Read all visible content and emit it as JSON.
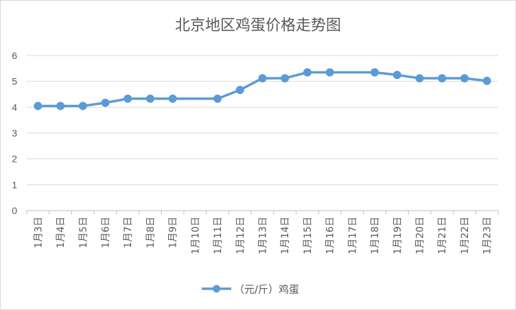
{
  "chart_data": {
    "type": "line",
    "title": "北京地区鸡蛋价格走势图",
    "categories": [
      "1月3日",
      "1月4日",
      "1月5日",
      "1月6日",
      "1月7日",
      "1月8日",
      "1月9日",
      "1月10日",
      "1月11日",
      "1月12日",
      "1月13日",
      "1月14日",
      "1月15日",
      "1月16日",
      "1月17日",
      "1月18日",
      "1月19日",
      "1月20日",
      "1月21日",
      "1月22日",
      "1月23日"
    ],
    "series": [
      {
        "name": "（元/斤）鸡蛋",
        "color": "#5b9bd5",
        "values": [
          4.05,
          4.05,
          4.05,
          4.17,
          4.33,
          4.33,
          4.33,
          null,
          4.33,
          4.67,
          5.12,
          5.12,
          5.35,
          5.35,
          null,
          5.35,
          5.25,
          5.12,
          5.12,
          5.12,
          5.02
        ]
      }
    ],
    "yticks": [
      0,
      1,
      2,
      3,
      4,
      5,
      6
    ],
    "ylim": [
      0,
      6
    ],
    "grid": true,
    "legend": "bottom"
  }
}
